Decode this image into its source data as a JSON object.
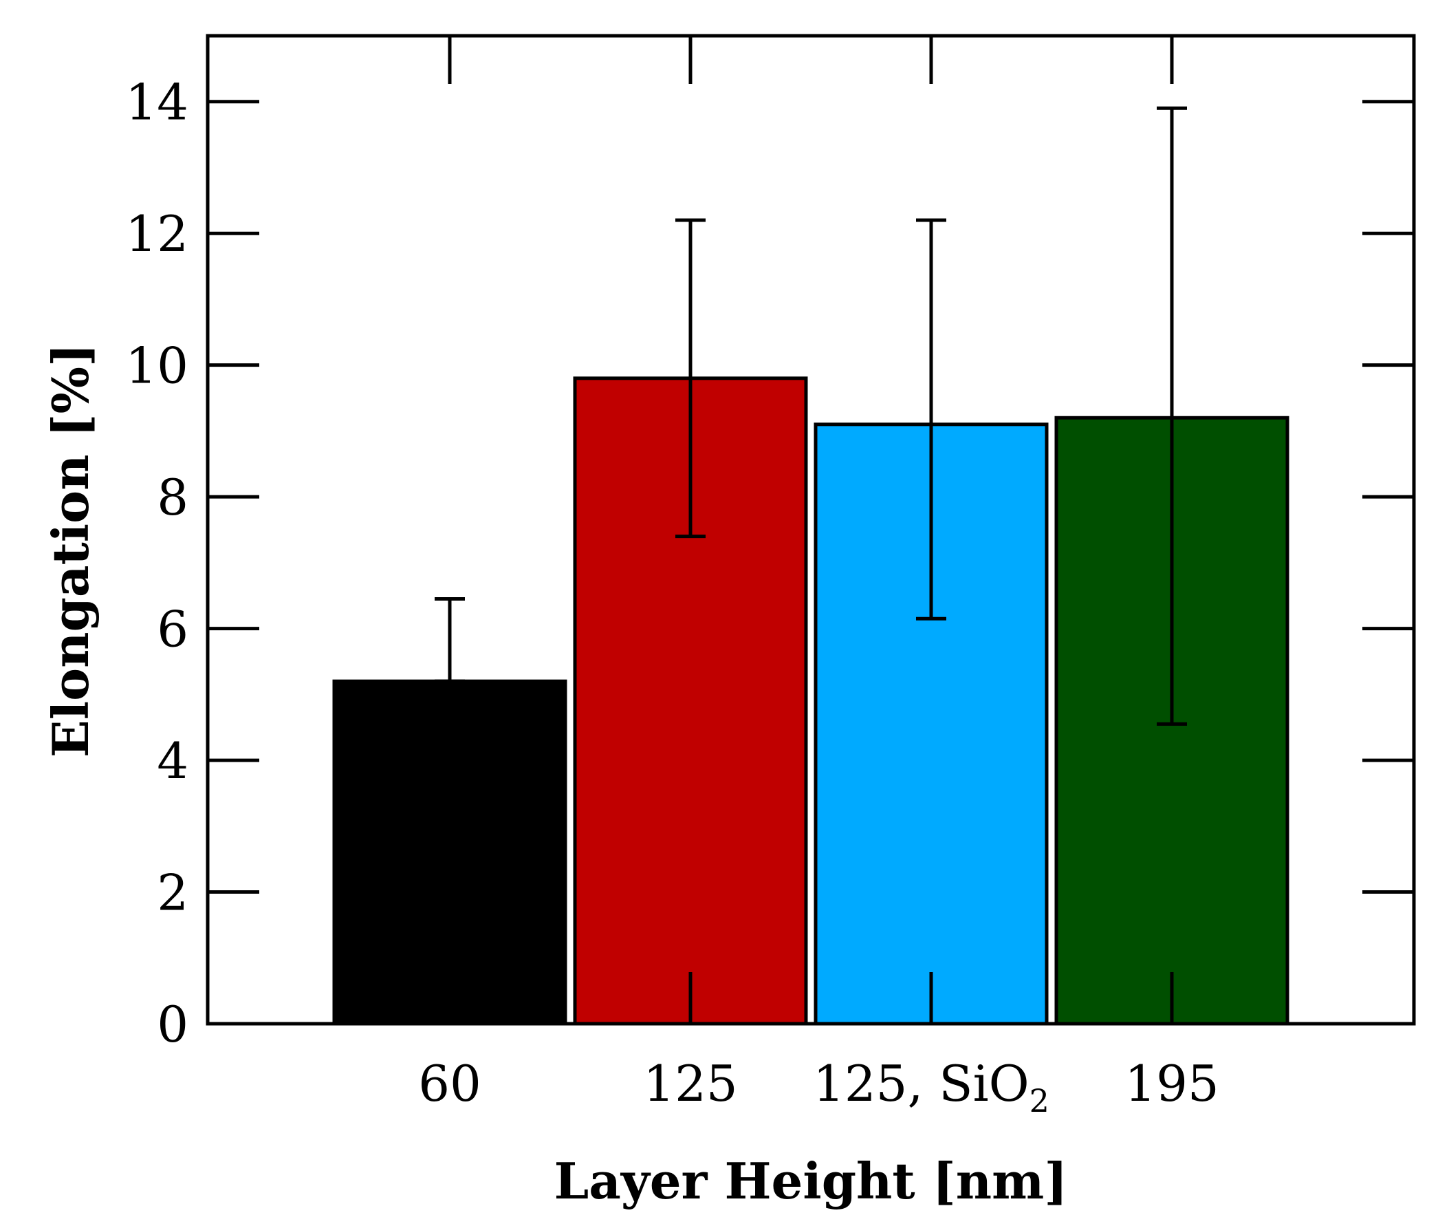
{
  "chart_data": {
    "type": "bar",
    "title": "",
    "xlabel": "Layer Height [nm]",
    "ylabel": "Elongation [%]",
    "ylim": [
      0,
      15
    ],
    "yticks": [
      0,
      2,
      4,
      6,
      8,
      10,
      12,
      14
    ],
    "grid": false,
    "legend": "none",
    "categories": [
      {
        "label": "60",
        "sub": ""
      },
      {
        "label": "125",
        "sub": ""
      },
      {
        "label": "125, SiO",
        "sub": "2"
      },
      {
        "label": "195",
        "sub": ""
      }
    ],
    "values": [
      5.2,
      9.8,
      9.1,
      9.2
    ],
    "errors": [
      {
        "low": 5.2,
        "high": 6.45
      },
      {
        "low": 7.4,
        "high": 12.2
      },
      {
        "low": 6.15,
        "high": 12.2
      },
      {
        "low": 4.55,
        "high": 13.9
      }
    ],
    "colors": [
      "#000000",
      "#c00000",
      "#00aaff",
      "#004f00"
    ]
  }
}
